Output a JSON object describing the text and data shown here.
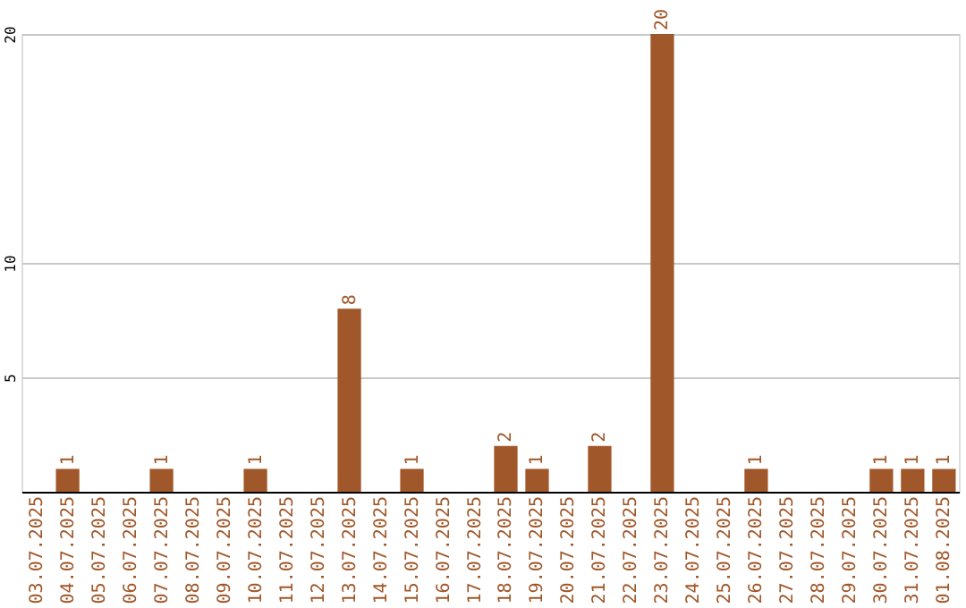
{
  "chart_data": {
    "type": "bar",
    "categories": [
      "03.07.2025",
      "04.07.2025",
      "05.07.2025",
      "06.07.2025",
      "07.07.2025",
      "08.07.2025",
      "09.07.2025",
      "10.07.2025",
      "11.07.2025",
      "12.07.2025",
      "13.07.2025",
      "14.07.2025",
      "15.07.2025",
      "16.07.2025",
      "17.07.2025",
      "18.07.2025",
      "19.07.2025",
      "20.07.2025",
      "21.07.2025",
      "22.07.2025",
      "23.07.2025",
      "24.07.2025",
      "25.07.2025",
      "26.07.2025",
      "27.07.2025",
      "28.07.2025",
      "29.07.2025",
      "30.07.2025",
      "31.07.2025",
      "01.08.2025"
    ],
    "values": [
      0,
      1,
      0,
      0,
      1,
      0,
      0,
      1,
      0,
      0,
      8,
      0,
      1,
      0,
      0,
      2,
      1,
      0,
      2,
      0,
      20,
      0,
      0,
      1,
      0,
      0,
      0,
      1,
      1,
      1
    ],
    "value_labels": [
      null,
      "1",
      null,
      null,
      "1",
      null,
      null,
      "1",
      null,
      null,
      "8",
      null,
      "1",
      null,
      null,
      "2",
      "1",
      null,
      "2",
      null,
      "20",
      null,
      null,
      "1",
      null,
      null,
      null,
      "1",
      "1",
      "1"
    ],
    "color": "#a0582a",
    "ylim": [
      0,
      20
    ],
    "yticks": [
      5,
      10,
      20
    ],
    "grid": "y"
  }
}
